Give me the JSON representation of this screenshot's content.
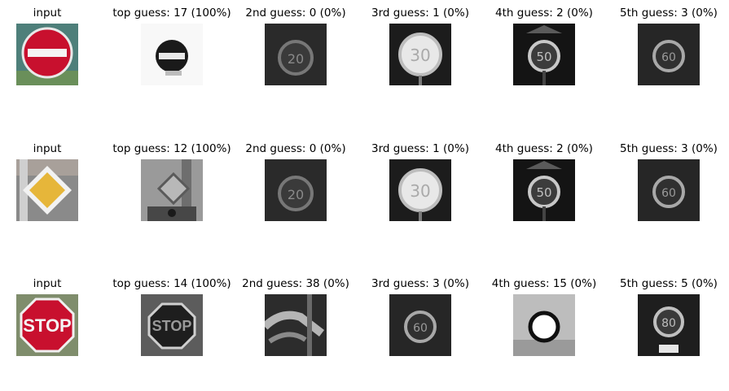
{
  "chart_data": {
    "type": "image-grid",
    "rows": [
      {
        "input": {
          "title": "input",
          "sign": "no-entry"
        },
        "guesses": [
          {
            "title": "top guess: 17 (100%)",
            "class_id": 17,
            "probability": 100,
            "sign": "no-entry"
          },
          {
            "title": "2nd guess: 0 (0%)",
            "class_id": 0,
            "probability": 0,
            "sign": "speed-20"
          },
          {
            "title": "3rd guess: 1 (0%)",
            "class_id": 1,
            "probability": 0,
            "sign": "speed-30"
          },
          {
            "title": "4th guess: 2 (0%)",
            "class_id": 2,
            "probability": 0,
            "sign": "speed-50"
          },
          {
            "title": "5th guess: 3 (0%)",
            "class_id": 3,
            "probability": 0,
            "sign": "speed-60"
          }
        ]
      },
      {
        "input": {
          "title": "input",
          "sign": "priority-road"
        },
        "guesses": [
          {
            "title": "top guess: 12 (100%)",
            "class_id": 12,
            "probability": 100,
            "sign": "priority-road"
          },
          {
            "title": "2nd guess: 0 (0%)",
            "class_id": 0,
            "probability": 0,
            "sign": "speed-20"
          },
          {
            "title": "3rd guess: 1 (0%)",
            "class_id": 1,
            "probability": 0,
            "sign": "speed-30"
          },
          {
            "title": "4th guess: 2 (0%)",
            "class_id": 2,
            "probability": 0,
            "sign": "speed-50"
          },
          {
            "title": "5th guess: 3 (0%)",
            "class_id": 3,
            "probability": 0,
            "sign": "speed-60"
          }
        ]
      },
      {
        "input": {
          "title": "input",
          "sign": "stop"
        },
        "guesses": [
          {
            "title": "top guess: 14 (100%)",
            "class_id": 14,
            "probability": 100,
            "sign": "stop"
          },
          {
            "title": "2nd guess: 38 (0%)",
            "class_id": 38,
            "probability": 0,
            "sign": "keep-right"
          },
          {
            "title": "3rd guess: 3 (0%)",
            "class_id": 3,
            "probability": 0,
            "sign": "speed-60"
          },
          {
            "title": "4th guess: 15 (0%)",
            "class_id": 15,
            "probability": 0,
            "sign": "no-vehicles"
          },
          {
            "title": "5th guess: 5 (0%)",
            "class_id": 5,
            "probability": 0,
            "sign": "speed-80"
          }
        ]
      }
    ]
  }
}
